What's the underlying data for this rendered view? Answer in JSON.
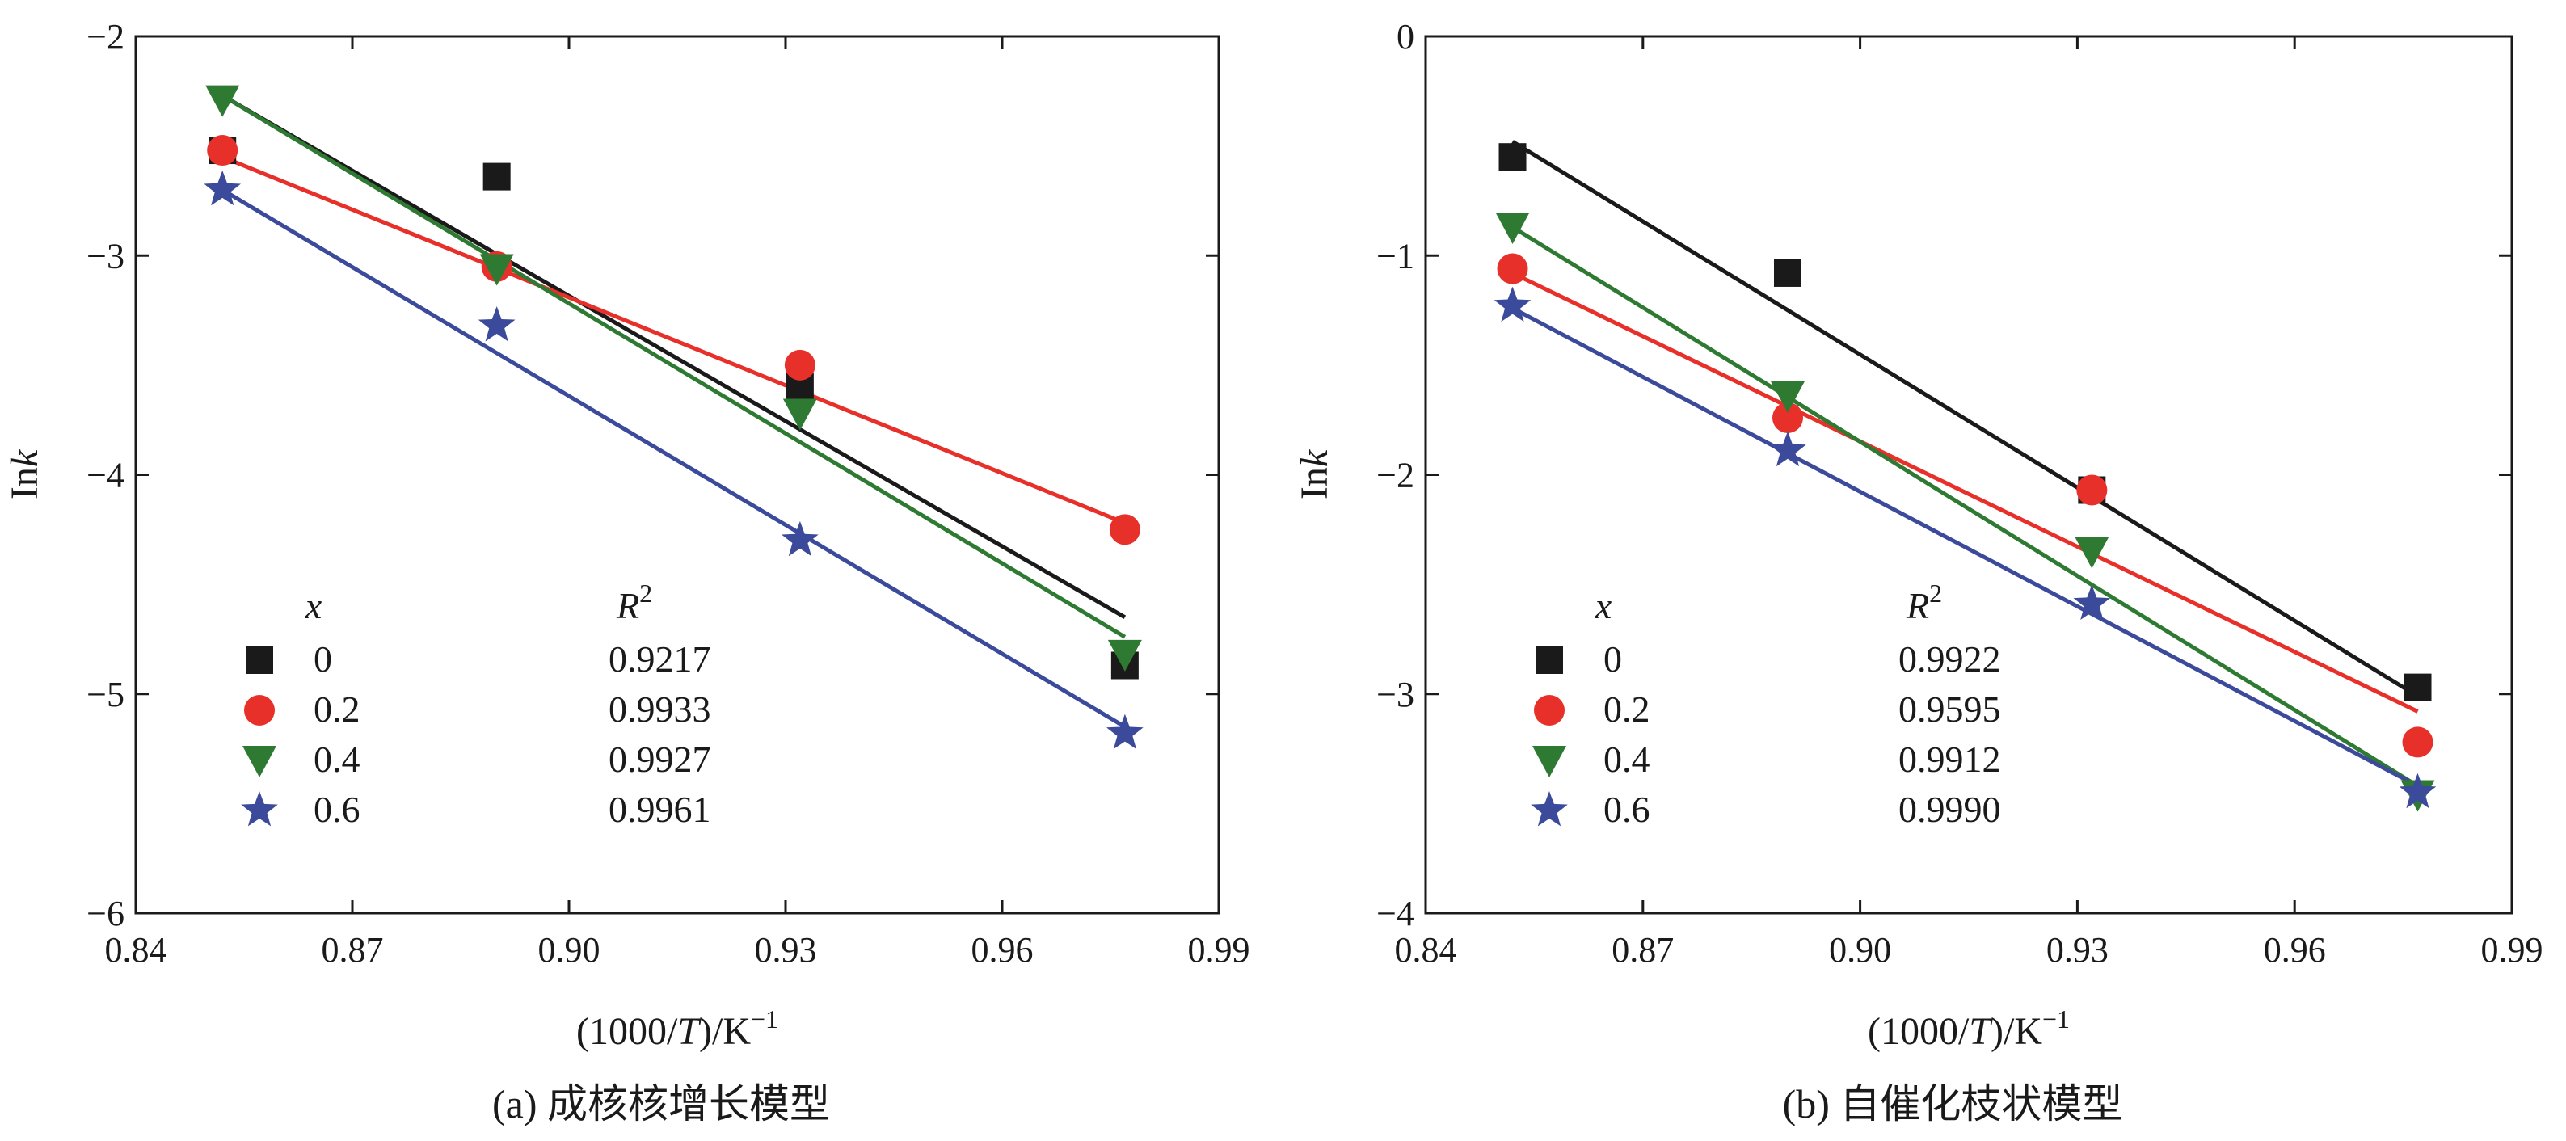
{
  "chart_data": [
    {
      "type": "scatter",
      "panel": "a",
      "caption": "(a) 成核核增长模型",
      "xlabel": "(1000/T)/K⁻¹",
      "xlabel_prefix": "(1000/",
      "xlabel_var": "T",
      "xlabel_suffix": ")/K",
      "xlabel_sup": "−1",
      "ylabel_prefix": "In",
      "ylabel_var": "k",
      "xlim": [
        0.84,
        0.99
      ],
      "ylim": [
        -6,
        -2
      ],
      "xticks": [
        "0.84",
        "0.87",
        "0.90",
        "0.93",
        "0.96",
        "0.99"
      ],
      "yticks": [
        "−2",
        "−3",
        "−4",
        "−5",
        "−6"
      ],
      "legend_header_x": "x",
      "legend_header_r": "R",
      "legend_header_sup": "2",
      "series": [
        {
          "name": "0",
          "r2": "0.9217",
          "color": "#1a1a1a",
          "marker": "square",
          "x": [
            0.852,
            0.89,
            0.932,
            0.977
          ],
          "y": [
            -2.52,
            -2.64,
            -3.6,
            -4.87
          ],
          "fit": [
            [
              0.852,
              -2.27
            ],
            [
              0.977,
              -4.65
            ]
          ]
        },
        {
          "name": "0.2",
          "r2": "0.9933",
          "color": "#e8302a",
          "marker": "circle",
          "x": [
            0.852,
            0.89,
            0.932,
            0.977
          ],
          "y": [
            -2.52,
            -3.05,
            -3.5,
            -4.25
          ],
          "fit": [
            [
              0.852,
              -2.55
            ],
            [
              0.977,
              -4.22
            ]
          ]
        },
        {
          "name": "0.4",
          "r2": "0.9927",
          "color": "#2e7a32",
          "marker": "triangle-down",
          "x": [
            0.852,
            0.89,
            0.932,
            0.977
          ],
          "y": [
            -2.29,
            -3.06,
            -3.72,
            -4.82
          ],
          "fit": [
            [
              0.852,
              -2.27
            ],
            [
              0.977,
              -4.74
            ]
          ]
        },
        {
          "name": "0.6",
          "r2": "0.9961",
          "color": "#3b4a9a",
          "marker": "star",
          "x": [
            0.852,
            0.89,
            0.932,
            0.977
          ],
          "y": [
            -2.7,
            -3.32,
            -4.3,
            -5.18
          ],
          "fit": [
            [
              0.852,
              -2.7
            ],
            [
              0.977,
              -5.15
            ]
          ]
        }
      ]
    },
    {
      "type": "scatter",
      "panel": "b",
      "caption": "(b) 自催化枝状模型",
      "xlabel": "(1000/T)/K⁻¹",
      "xlabel_prefix": "(1000/",
      "xlabel_var": "T",
      "xlabel_suffix": ")/K",
      "xlabel_sup": "−1",
      "ylabel_prefix": "In",
      "ylabel_var": "k",
      "xlim": [
        0.84,
        0.99
      ],
      "ylim": [
        -4,
        0
      ],
      "xticks": [
        "0.84",
        "0.87",
        "0.90",
        "0.93",
        "0.96",
        "0.99"
      ],
      "yticks": [
        "0",
        "−1",
        "−2",
        "−3",
        "−4"
      ],
      "legend_header_x": "x",
      "legend_header_r": "R",
      "legend_header_sup": "2",
      "series": [
        {
          "name": "0",
          "r2": "0.9922",
          "color": "#1a1a1a",
          "marker": "square",
          "x": [
            0.852,
            0.89,
            0.932,
            0.977
          ],
          "y": [
            -0.55,
            -1.08,
            -2.07,
            -2.97
          ],
          "fit": [
            [
              0.852,
              -0.48
            ],
            [
              0.977,
              -3.01
            ]
          ]
        },
        {
          "name": "0.2",
          "r2": "0.9595",
          "color": "#e8302a",
          "marker": "circle",
          "x": [
            0.852,
            0.89,
            0.932,
            0.977
          ],
          "y": [
            -1.06,
            -1.74,
            -2.07,
            -3.22
          ],
          "fit": [
            [
              0.852,
              -1.08
            ],
            [
              0.977,
              -3.08
            ]
          ]
        },
        {
          "name": "0.4",
          "r2": "0.9912",
          "color": "#2e7a32",
          "marker": "triangle-down",
          "x": [
            0.852,
            0.89,
            0.932,
            0.977
          ],
          "y": [
            -0.87,
            -1.64,
            -2.35,
            -3.46
          ],
          "fit": [
            [
              0.852,
              -0.87
            ],
            [
              0.977,
              -3.42
            ]
          ]
        },
        {
          "name": "0.6",
          "r2": "0.9990",
          "color": "#3b4a9a",
          "marker": "star",
          "x": [
            0.852,
            0.89,
            0.932,
            0.977
          ],
          "y": [
            -1.23,
            -1.89,
            -2.59,
            -3.45
          ],
          "fit": [
            [
              0.852,
              -1.24
            ],
            [
              0.977,
              -3.42
            ]
          ]
        }
      ]
    }
  ]
}
